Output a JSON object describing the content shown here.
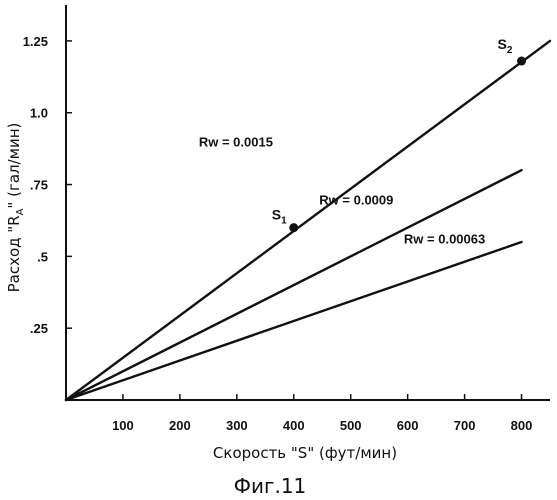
{
  "chart_data": {
    "type": "line",
    "xlabel": "Скорость \"S\"   (фут/мин)",
    "ylabel": "Расход \"R",
    "ylabel_sub": "A",
    "ylabel_tail": "\" (гал/мин)",
    "xlim": [
      0,
      850
    ],
    "ylim": [
      0,
      1.375
    ],
    "x_ticks": [
      100,
      200,
      300,
      400,
      500,
      600,
      700,
      800
    ],
    "x_tick_labels": [
      "100",
      "200",
      "300",
      "400",
      "500",
      "600",
      "700",
      "800"
    ],
    "y_ticks": [
      0.25,
      0.5,
      0.75,
      1.0,
      1.25
    ],
    "y_tick_labels": [
      ".25",
      ".5",
      ".75",
      "1.0",
      "1.25"
    ],
    "series": [
      {
        "name": "Rw = 0.0015",
        "x": [
          0,
          850
        ],
        "y": [
          0,
          1.25
        ]
      },
      {
        "name": "Rw = 0.0009",
        "x": [
          0,
          800
        ],
        "y": [
          0,
          0.8
        ]
      },
      {
        "name": "Rw = 0.00063",
        "x": [
          0,
          800
        ],
        "y": [
          0,
          0.55
        ]
      }
    ],
    "points": [
      {
        "label": "S",
        "sub": "1",
        "x": 400,
        "y": 0.6
      },
      {
        "label": "S",
        "sub": "2",
        "x": 800,
        "y": 1.18
      }
    ],
    "grid": false,
    "caption": "Фиг.11"
  }
}
